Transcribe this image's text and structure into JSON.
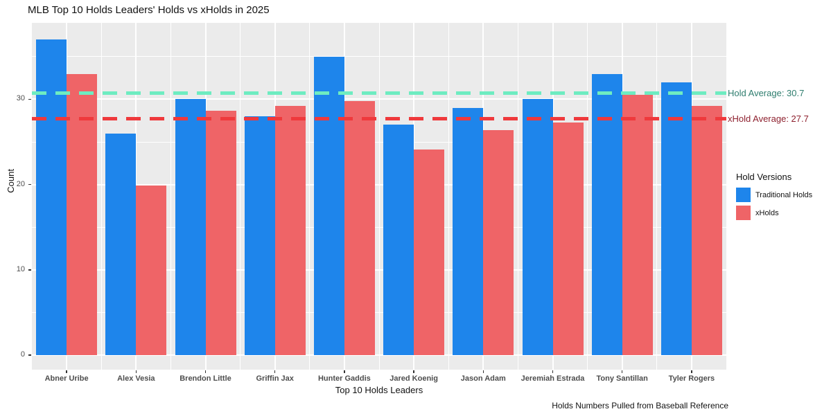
{
  "chart_data": {
    "type": "bar",
    "title": "MLB Top 10 Holds Leaders' Holds vs xHolds in 2025",
    "xlabel": "Top 10 Holds Leaders",
    "ylabel": "Count",
    "caption": "Holds Numbers Pulled from Baseball Reference",
    "categories": [
      "Abner Uribe",
      "Alex Vesia",
      "Brendon Little",
      "Griffin Jax",
      "Hunter Gaddis",
      "Jared Koenig",
      "Jason Adam",
      "Jeremiah Estrada",
      "Tony Santillan",
      "Tyler Rogers"
    ],
    "series": [
      {
        "name": "Traditional Holds",
        "color": "#1E85EB",
        "values": [
          37,
          26,
          30,
          28,
          35,
          27,
          29,
          30,
          33,
          32
        ]
      },
      {
        "name": "xHolds",
        "color": "#EF6467",
        "values": [
          33,
          19.9,
          28.7,
          29.2,
          29.8,
          24.1,
          26.4,
          27.3,
          30.5,
          29.2
        ]
      }
    ],
    "ylim": [
      0,
      38.8
    ],
    "yticks": [
      0,
      10,
      20,
      30
    ],
    "yticks_minor": [
      5,
      15,
      25,
      35
    ],
    "grid": true,
    "legend_position": "right",
    "legend_title": "Hold Versions",
    "reference_lines": [
      {
        "label": "Hold Average: 30.7",
        "value": 30.7,
        "line_color": "#6EECC1",
        "text_color": "#2E7D6E"
      },
      {
        "label": "xHold Average: 27.7",
        "value": 27.7,
        "line_color": "#EF393C",
        "text_color": "#8D1F2D"
      }
    ],
    "colors": {
      "panel_bg": "#EBEBEB",
      "grid": "#FFFFFF",
      "axis_text": "#4D4D4D"
    }
  }
}
